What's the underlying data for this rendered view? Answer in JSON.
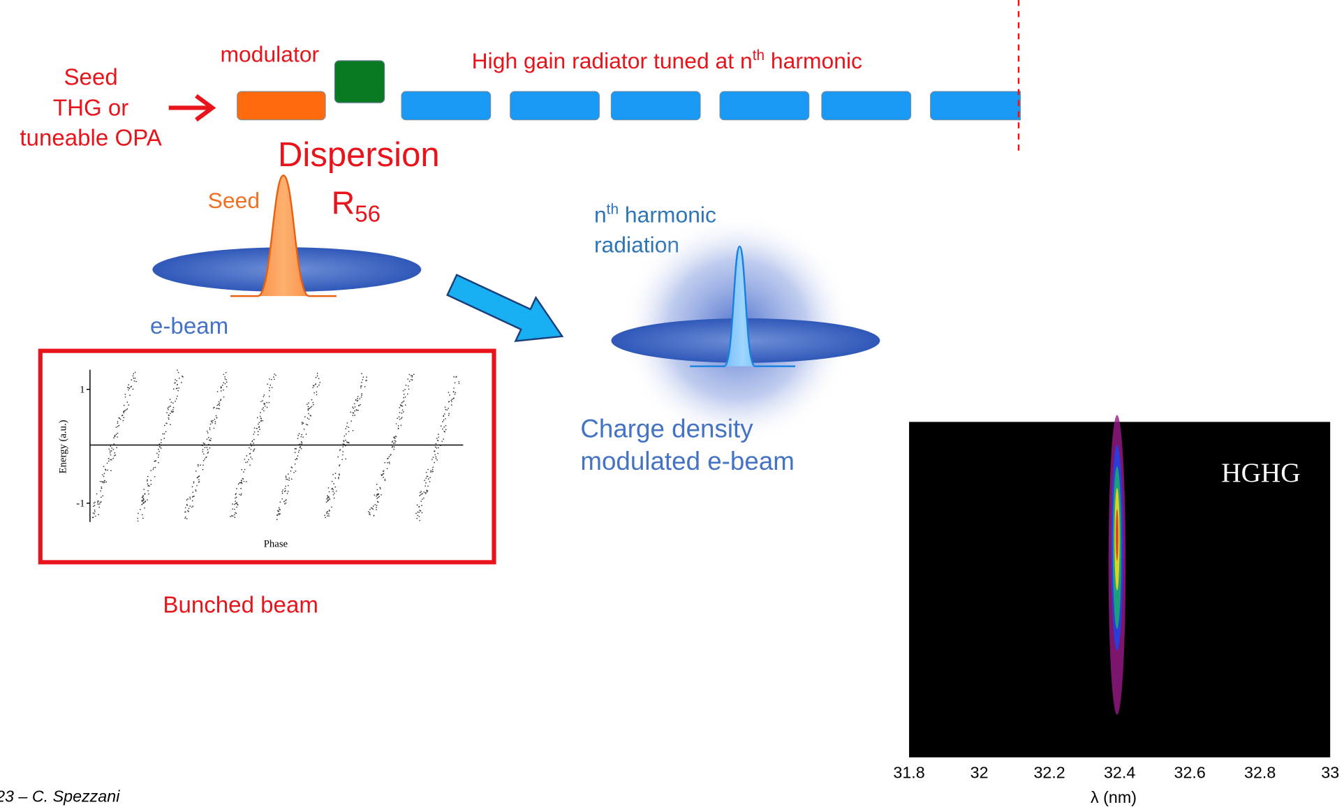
{
  "seed_source": {
    "lines": [
      "Seed",
      "THG or",
      "tuneable OPA"
    ]
  },
  "modulator": "modulator",
  "radiator": {
    "text": "High gain radiator tuned at n",
    "sup": "th",
    "tail": " harmonic"
  },
  "dispersion": {
    "title": "Dispersion",
    "symbol": "R",
    "subscript": "56"
  },
  "seed_pulse": "Seed",
  "ebeam": "e-beam",
  "harmonic_radiation": {
    "n": "n",
    "sup": "th",
    "tail": " harmonic",
    "line2": "radiation"
  },
  "modulated_beam": {
    "lines": [
      "Charge density",
      "modulated e-beam"
    ]
  },
  "bunched_plot": {
    "caption": "Bunched beam",
    "ylabel": "Energy (a.u.)",
    "xlabel": "Phase",
    "yticks": [
      "1",
      "-1"
    ]
  },
  "spectrum": {
    "label": "HGHG",
    "xticks": [
      31.8,
      32,
      32.2,
      32.4,
      32.6,
      32.8,
      33
    ],
    "xlabel": "λ (nm)"
  },
  "footer": "23 – C. Spezzani"
}
